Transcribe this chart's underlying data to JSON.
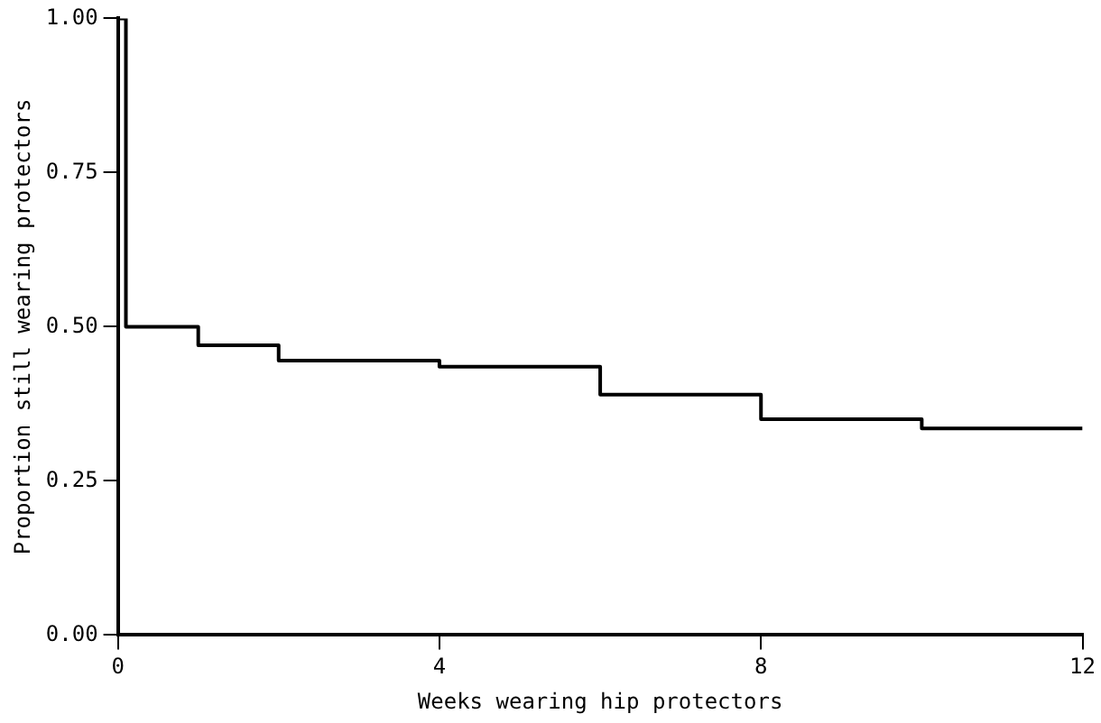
{
  "chart_data": {
    "type": "step",
    "xlabel": "Weeks wearing hip protectors",
    "ylabel": "Proportion still wearing protectors",
    "x": [
      0,
      0.1,
      1,
      2,
      4,
      6,
      8,
      10,
      12
    ],
    "series": [
      {
        "color": "#000000",
        "values": [
          1.0,
          0.5,
          0.47,
          0.445,
          0.435,
          0.39,
          0.35,
          0.335,
          0.335
        ]
      }
    ],
    "xlim": [
      0,
      12
    ],
    "xticks": [
      0,
      4,
      8,
      12
    ],
    "ylim": [
      0,
      1
    ],
    "yticks": [
      {
        "value": 0,
        "label": "0.00"
      },
      {
        "value": 0.25,
        "label": "0.25"
      },
      {
        "value": 0.5,
        "label": "0.50"
      },
      {
        "value": 0.75,
        "label": "0.75"
      },
      {
        "value": 1,
        "label": "1.00"
      }
    ],
    "grid": false,
    "legend": false,
    "marker": "none",
    "line_style": "solid"
  }
}
